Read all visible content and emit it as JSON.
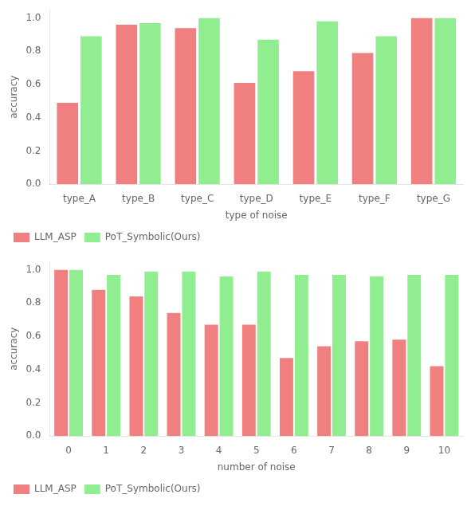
{
  "chart_data": [
    {
      "type": "bar",
      "categories": [
        "type_A",
        "type_B",
        "type_C",
        "type_D",
        "type_E",
        "type_F",
        "type_G"
      ],
      "series": [
        {
          "name": "LLM_ASP",
          "color": "#F08080",
          "values": [
            0.49,
            0.96,
            0.94,
            0.61,
            0.68,
            0.79,
            1.0
          ]
        },
        {
          "name": "PoT_Symbolic(Ours)",
          "color": "#90EE90",
          "values": [
            0.89,
            0.97,
            1.0,
            0.87,
            0.98,
            0.89,
            1.0
          ]
        }
      ],
      "xlabel": "type of noise",
      "ylabel": "accuracy",
      "ylim": [
        0.0,
        1.05
      ],
      "yticks": [
        {
          "value": 0.0,
          "label": "0.0"
        },
        {
          "value": 0.2,
          "label": "0.2"
        },
        {
          "value": 0.4,
          "label": "0.4"
        },
        {
          "value": 0.6,
          "label": "0.6"
        },
        {
          "value": 0.8,
          "label": "0.8"
        },
        {
          "value": 1.0,
          "label": "1.0"
        }
      ],
      "legend": "lower left",
      "grid": false
    },
    {
      "type": "bar",
      "categories": [
        0,
        1,
        2,
        3,
        4,
        5,
        6,
        7,
        8,
        9,
        10
      ],
      "series": [
        {
          "name": "LLM_ASP",
          "color": "#F08080",
          "values": [
            1.0,
            0.88,
            0.84,
            0.74,
            0.67,
            0.67,
            0.47,
            0.54,
            0.57,
            0.58,
            0.42
          ]
        },
        {
          "name": "PoT_Symbolic(Ours)",
          "color": "#90EE90",
          "values": [
            1.0,
            0.97,
            0.99,
            0.99,
            0.96,
            0.99,
            0.97,
            0.97,
            0.96,
            0.97,
            0.97
          ]
        }
      ],
      "xlabel": "number of noise",
      "ylabel": "accuracy",
      "ylim": [
        0.0,
        1.05
      ],
      "yticks": [
        {
          "value": 0.0,
          "label": "0.0"
        },
        {
          "value": 0.2,
          "label": "0.2"
        },
        {
          "value": 0.4,
          "label": "0.4"
        },
        {
          "value": 0.6,
          "label": "0.6"
        },
        {
          "value": 0.8,
          "label": "0.8"
        },
        {
          "value": 1.0,
          "label": "1.0"
        }
      ],
      "legend": "lower left",
      "grid": false
    }
  ]
}
